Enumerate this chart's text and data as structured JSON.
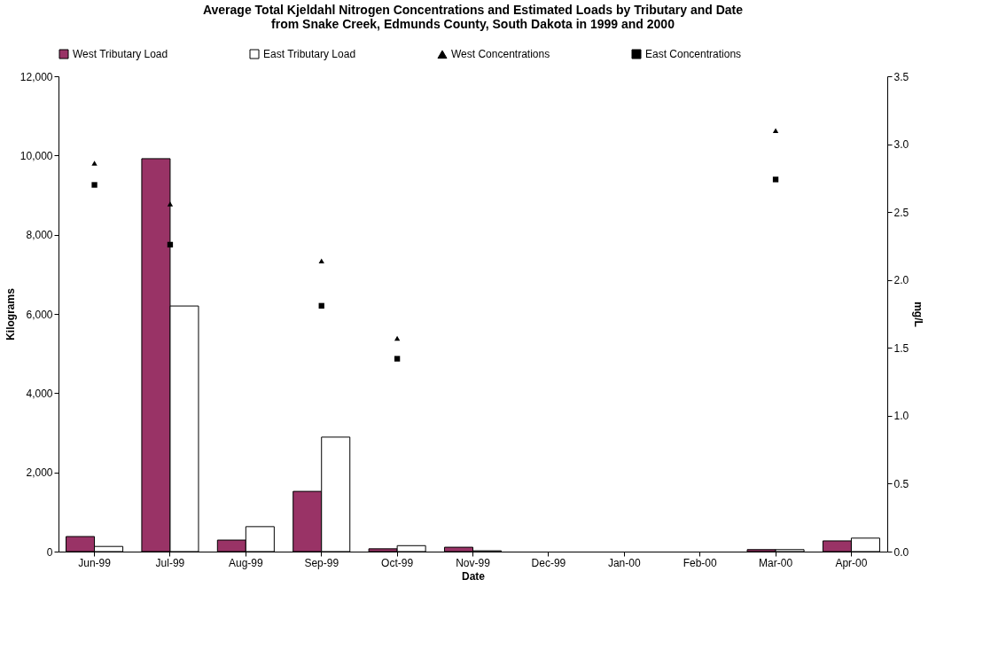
{
  "chart_data": {
    "type": "bar",
    "title": [
      "Average Total Kjeldahl Nitrogen Concentrations and Estimated Loads by Tributary and Date",
      "from Snake Creek, Edmunds County, South Dakota in 1999 and 2000"
    ],
    "xlabel": "Date",
    "ylabel": "Kilograms",
    "y2label": "mg/L",
    "categories": [
      "Jun-99",
      "Jul-99",
      "Aug-99",
      "Sep-99",
      "Oct-99",
      "Nov-99",
      "Dec-99",
      "Jan-00",
      "Feb-00",
      "Mar-00",
      "Apr-00"
    ],
    "series": [
      {
        "name": "West Tributary Load",
        "color": "#993366",
        "values": [
          380,
          9920,
          290,
          1520,
          70,
          110,
          null,
          null,
          null,
          50,
          270
        ]
      },
      {
        "name": "East Tributary Load",
        "color": "#ffffff",
        "values": [
          130,
          6200,
          630,
          2890,
          150,
          20,
          null,
          null,
          null,
          50,
          340
        ]
      },
      {
        "name": "West Concentrations",
        "type": "scatter",
        "axis": "y2",
        "marker": "triangle",
        "color": "#000000",
        "values": [
          2.86,
          2.56,
          null,
          2.14,
          1.57,
          null,
          null,
          null,
          null,
          3.1,
          null
        ]
      },
      {
        "name": "East Concentrations",
        "type": "scatter",
        "axis": "y2",
        "marker": "square",
        "color": "#000000",
        "values": [
          2.7,
          2.26,
          null,
          1.81,
          1.42,
          null,
          null,
          null,
          null,
          2.74,
          null
        ]
      }
    ],
    "ylim": [
      0,
      12000
    ],
    "yticks": [
      {
        "value": 0,
        "label": "0"
      },
      {
        "value": 2000,
        "label": "2,000"
      },
      {
        "value": 4000,
        "label": "4,000"
      },
      {
        "value": 6000,
        "label": "6,000"
      },
      {
        "value": 8000,
        "label": "8,000"
      },
      {
        "value": 10000,
        "label": "10,000"
      },
      {
        "value": 12000,
        "label": "12,000"
      }
    ],
    "y2lim": [
      0,
      3.5
    ],
    "y2ticks": [
      {
        "value": 0,
        "label": "0.0"
      },
      {
        "value": 0.5,
        "label": "0.5"
      },
      {
        "value": 1,
        "label": "1.0"
      },
      {
        "value": 1.5,
        "label": "1.5"
      },
      {
        "value": 2,
        "label": "2.0"
      },
      {
        "value": 2.5,
        "label": "2.5"
      },
      {
        "value": 3,
        "label": "3.0"
      },
      {
        "value": 3.5,
        "label": "3.5"
      }
    ],
    "legend": "top",
    "grid": false
  }
}
